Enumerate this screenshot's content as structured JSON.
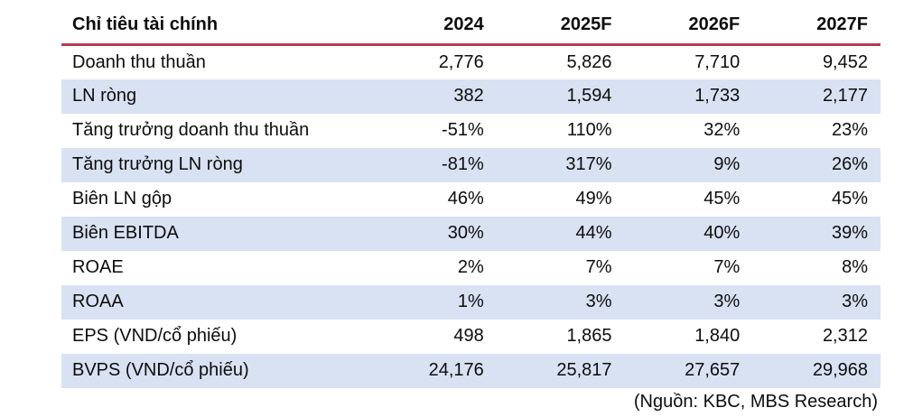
{
  "table": {
    "title": "Chỉ tiêu tài chính",
    "header": [
      "Chỉ tiêu tài chính",
      "2024",
      "2025F",
      "2026F",
      "2027F"
    ],
    "rows": [
      {
        "label": "Doanh thu thuần",
        "values": [
          "2,776",
          "5,826",
          "7,710",
          "9,452"
        ]
      },
      {
        "label": "LN ròng",
        "values": [
          "382",
          "1,594",
          "1,733",
          "2,177"
        ]
      },
      {
        "label": "Tăng trưởng doanh thu thuần",
        "values": [
          "-51%",
          "110%",
          "32%",
          "23%"
        ]
      },
      {
        "label": "Tăng trưởng LN ròng",
        "values": [
          "-81%",
          "317%",
          "9%",
          "26%"
        ]
      },
      {
        "label": "Biên LN gộp",
        "values": [
          "46%",
          "49%",
          "45%",
          "45%"
        ]
      },
      {
        "label": "Biên EBITDA",
        "values": [
          "30%",
          "44%",
          "40%",
          "39%"
        ]
      },
      {
        "label": "ROAE",
        "values": [
          "2%",
          "7%",
          "7%",
          "8%"
        ]
      },
      {
        "label": "ROAA",
        "values": [
          "1%",
          "3%",
          "3%",
          "3%"
        ]
      },
      {
        "label": "EPS (VND/cổ phiếu)",
        "values": [
          "498",
          "1,865",
          "1,840",
          "2,312"
        ]
      },
      {
        "label": "BVPS (VND/cổ phiếu)",
        "values": [
          "24,176",
          "25,817",
          "27,657",
          "29,968"
        ]
      }
    ]
  },
  "source_note": "(Nguồn: KBC, MBS Research)",
  "colors": {
    "header_underline": "#B83A50",
    "row_alt_background": "#D9E2F3",
    "text": "#0d0d0d"
  }
}
